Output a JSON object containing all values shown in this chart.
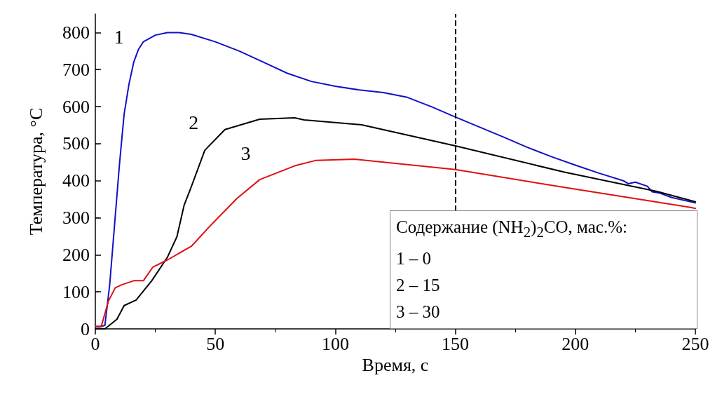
{
  "chart_data": {
    "type": "line",
    "xlabel": "Время, с",
    "ylabel": "Температура, °C",
    "xlim": [
      0,
      250
    ],
    "ylim": [
      0,
      850
    ],
    "xticks": [
      0,
      50,
      100,
      150,
      200,
      250
    ],
    "yticks": [
      0,
      100,
      200,
      300,
      400,
      500,
      600,
      700,
      800
    ],
    "grid": false,
    "legend": false,
    "marker": "none",
    "line_style": "solid",
    "series": [
      {
        "name": "1",
        "color": "#1010c8",
        "x": [
          0,
          2,
          4,
          6,
          8,
          10,
          12,
          14,
          16,
          18,
          20,
          25,
          30,
          35,
          40,
          50,
          60,
          70,
          80,
          90,
          100,
          110,
          120,
          130,
          140,
          150,
          160,
          170,
          180,
          190,
          200,
          210,
          220,
          222,
          225,
          230,
          232,
          235,
          240,
          250
        ],
        "values": [
          5,
          5,
          10,
          120,
          280,
          440,
          580,
          660,
          720,
          755,
          775,
          793,
          800,
          800,
          795,
          775,
          750,
          720,
          690,
          668,
          655,
          645,
          638,
          625,
          600,
          572,
          545,
          518,
          490,
          465,
          442,
          420,
          400,
          392,
          396,
          385,
          370,
          367,
          355,
          340
        ]
      },
      {
        "name": "2",
        "color": "#000000",
        "x": [
          0,
          4,
          9,
          12,
          17,
          23.5,
          30,
          34,
          37,
          40,
          45.6,
          54,
          68.5,
          83,
          87,
          111,
          150,
          195.5,
          234,
          250
        ],
        "values": [
          0,
          0,
          26,
          63,
          78,
          130,
          193,
          249,
          334,
          384,
          482,
          538,
          566,
          570,
          564,
          551,
          494,
          423,
          371,
          343
        ]
      },
      {
        "name": "3",
        "color": "#e01010",
        "x": [
          0,
          2.5,
          5.4,
          8.3,
          11,
          16,
          20,
          24,
          30,
          40,
          49,
          59,
          68.5,
          83,
          92,
          108,
          150,
          195.5,
          248,
          250
        ],
        "values": [
          7,
          7,
          74,
          111,
          119,
          130,
          130,
          167,
          186,
          223,
          286,
          352,
          403,
          440,
          455,
          458,
          430,
          382,
          328,
          325
        ]
      }
    ],
    "ref_lines": [
      {
        "axis": "x",
        "value": 150,
        "line_style": "dashed",
        "color": "#000000"
      }
    ],
    "annotations": [
      "Содержание (NH$_{2}$)$_{2}$CO, мас.%:",
      "1 – 0",
      "2 – 15",
      "3 – 30"
    ]
  }
}
